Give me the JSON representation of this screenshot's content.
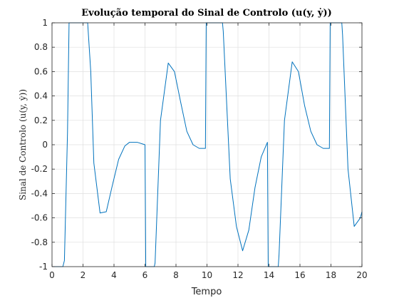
{
  "chart_data": {
    "type": "line",
    "title": "Evolução temporal do Sinal de Controlo (u(y, ẏ))",
    "xlabel": "Tempo",
    "ylabel": "Sinal de Controlo (u(y, ẏ))",
    "xlim": [
      0,
      20
    ],
    "ylim": [
      -1,
      1
    ],
    "xticks": [
      "0",
      "2",
      "4",
      "6",
      "8",
      "10",
      "12",
      "14",
      "16",
      "18",
      "20"
    ],
    "yticks": [
      "-1",
      "-0.8",
      "-0.6",
      "-0.4",
      "-0.2",
      "0",
      "0.2",
      "0.4",
      "0.6",
      "0.8",
      "1"
    ],
    "grid": true,
    "series": [
      {
        "color": "#0072BD",
        "x": [
          0,
          0.7,
          0.8,
          1.0,
          1.1,
          2.3,
          2.5,
          2.7,
          3.1,
          3.5,
          3.9,
          4.3,
          4.7,
          5.0,
          5.5,
          6.0,
          6.05,
          6.6,
          6.65,
          7.0,
          7.5,
          7.9,
          8.3,
          8.7,
          9.1,
          9.5,
          9.9,
          9.95,
          11.0,
          11.05,
          11.5,
          11.9,
          12.3,
          12.7,
          13.1,
          13.5,
          13.9,
          13.95,
          14.6,
          14.65,
          15.0,
          15.5,
          15.9,
          16.3,
          16.7,
          17.1,
          17.5,
          17.9,
          17.95,
          18.7,
          18.75,
          19.1,
          19.5,
          19.9,
          20.0
        ],
        "y": [
          -1,
          -1,
          -0.95,
          0.1,
          1,
          1,
          0.6,
          -0.15,
          -0.56,
          -0.55,
          -0.33,
          -0.12,
          -0.01,
          0.02,
          0.02,
          0.0,
          -1,
          -1,
          -0.97,
          0.2,
          0.67,
          0.6,
          0.35,
          0.11,
          0.0,
          -0.03,
          -0.03,
          1,
          1,
          0.93,
          -0.28,
          -0.67,
          -0.87,
          -0.7,
          -0.35,
          -0.1,
          0.02,
          -1,
          -1,
          -0.9,
          0.2,
          0.68,
          0.6,
          0.32,
          0.11,
          0.0,
          -0.03,
          -0.03,
          1,
          1,
          0.9,
          -0.2,
          -0.67,
          -0.6,
          -0.55
        ]
      }
    ]
  }
}
